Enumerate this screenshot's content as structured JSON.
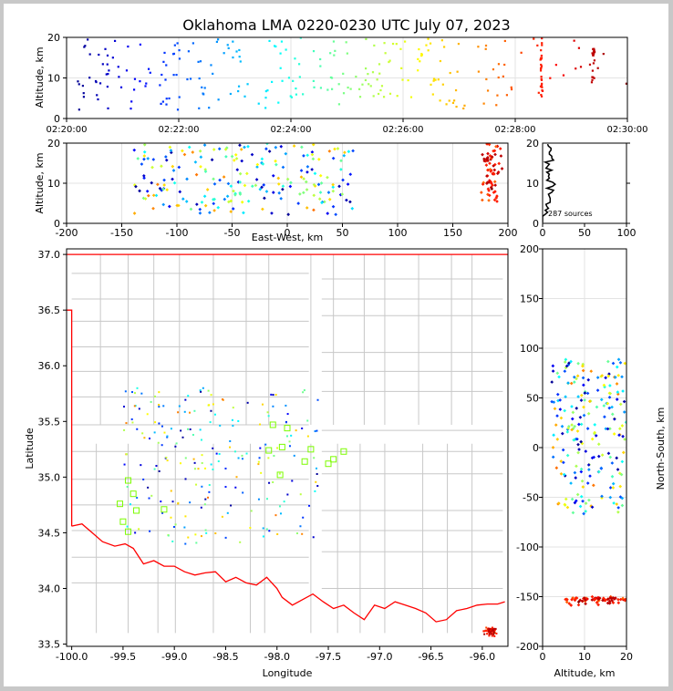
{
  "figure": {
    "title": "Oklahoma LMA 0220-0230 UTC July 07, 2023"
  },
  "chart_data": [
    {
      "type": "scatter",
      "name": "altitude-vs-time",
      "title": "Oklahoma LMA 0220-0230 UTC July 07, 2023",
      "ylabel": "Altitude, km",
      "xlabel": "",
      "xlim": [
        0,
        600
      ],
      "ylim": [
        0,
        20
      ],
      "xticks": [
        0,
        120,
        240,
        360,
        480,
        600
      ],
      "xtick_labels": [
        "02:20:00",
        "02:22:00",
        "02:24:00",
        "02:26:00",
        "02:28:00",
        "02:30:00"
      ],
      "yticks": [
        0,
        10,
        20
      ],
      "grid": true,
      "colormap": "time (blue to red)"
    },
    {
      "type": "scatter",
      "name": "altitude-vs-east-west",
      "xlabel": "East-West, km",
      "ylabel": "Altitude, km",
      "xlim": [
        -200,
        200
      ],
      "ylim": [
        0,
        20
      ],
      "xticks": [
        -200,
        -150,
        -100,
        -50,
        0,
        50,
        100,
        150,
        200
      ],
      "yticks": [
        0,
        10,
        20
      ],
      "grid": true
    },
    {
      "type": "bar",
      "name": "altitude-histogram",
      "xlim": [
        0,
        100
      ],
      "ylim": [
        0,
        20
      ],
      "xticks": [
        0,
        50,
        100
      ],
      "yticks": [
        0,
        10,
        20
      ],
      "annotation": "287 sources"
    },
    {
      "type": "scatter",
      "name": "plan-view",
      "xlabel": "Longitude",
      "ylabel": "Latitude",
      "xlim": [
        -100.05,
        -95.75
      ],
      "ylim": [
        33.48,
        37.05
      ],
      "xticks": [
        -100.0,
        -99.5,
        -99.0,
        -98.5,
        -98.0,
        -97.5,
        -97.0,
        -96.5,
        -96.0
      ],
      "yticks": [
        33.5,
        34.0,
        34.5,
        35.0,
        35.5,
        36.0,
        36.5,
        37.0
      ],
      "grid": true,
      "station_color": "#7CFC00",
      "border_color": "#ff0000"
    },
    {
      "type": "scatter",
      "name": "north-south-vs-altitude",
      "xlabel": "Altitude, km",
      "ylabel": "North-South, km",
      "xlim": [
        0,
        20
      ],
      "ylim": [
        -200,
        200
      ],
      "xticks": [
        0,
        10,
        20
      ],
      "yticks": [
        -200,
        -150,
        -100,
        -50,
        0,
        50,
        100,
        150,
        200
      ],
      "grid": true
    }
  ]
}
